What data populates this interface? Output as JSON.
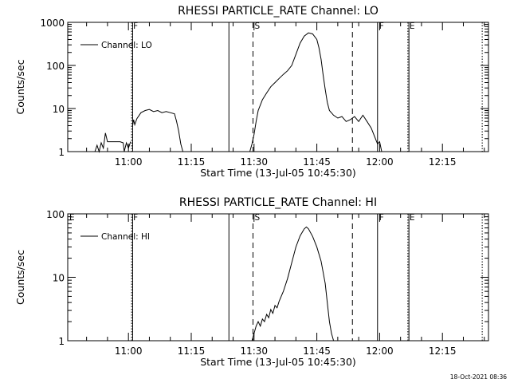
{
  "chart_data": [
    {
      "type": "line",
      "title": "RHESSI PARTICLE_RATE Channel: LO",
      "xlabel": "Start Time (13-Jul-05 10:45:30)",
      "ylabel": "Counts/sec",
      "xlim": [
        "10:45:30",
        "12:26:00"
      ],
      "ylim": [
        1,
        1000
      ],
      "yscale": "log",
      "grid": false,
      "legend": {
        "position": "top-left",
        "entries": [
          "Channel: LO"
        ]
      },
      "x_ticks": [
        "11:00",
        "11:15",
        "11:30",
        "11:45",
        "12:00",
        "12:15"
      ],
      "y_ticks": [
        "1",
        "10",
        "100",
        "1000"
      ],
      "flags": [
        {
          "label": "F",
          "time": "11:00:45",
          "style": "dotted"
        },
        {
          "label": "",
          "time": "11:01:00",
          "style": "solid"
        },
        {
          "label": "",
          "time": "11:24:00",
          "style": "solid"
        },
        {
          "label": "S",
          "time": "11:29:45",
          "style": "dashed"
        },
        {
          "label": "",
          "time": "11:53:30",
          "style": "dashed"
        },
        {
          "label": "F",
          "time": "11:59:30",
          "style": "solid"
        },
        {
          "label": "E",
          "time": "12:06:45",
          "style": "dotted"
        },
        {
          "label": "",
          "time": "12:07:00",
          "style": "solid"
        },
        {
          "label": "",
          "time": "12:24:30",
          "style": "dotted"
        }
      ],
      "series": [
        {
          "name": "Channel: LO",
          "segments": [
            [
              [
                "10:52:00",
                1
              ],
              [
                "10:52:30",
                1.4
              ],
              [
                "10:53:00",
                1
              ],
              [
                "10:53:30",
                1.6
              ],
              [
                "10:54:00",
                1.2
              ],
              [
                "10:54:30",
                2.7
              ],
              [
                "10:55:00",
                1.7
              ],
              [
                "10:56:00",
                1.7
              ],
              [
                "10:57:00",
                1.7
              ],
              [
                "10:58:00",
                1.7
              ],
              [
                "10:58:45",
                1.6
              ],
              [
                "10:59:00",
                1
              ],
              [
                "10:59:30",
                1.6
              ],
              [
                "11:00:00",
                1.2
              ],
              [
                "11:00:30",
                1.7
              ]
            ],
            [
              [
                "11:01:00",
                4.0
              ],
              [
                "11:01:15",
                5.5
              ],
              [
                "11:01:30",
                4.2
              ],
              [
                "11:02:00",
                5.8
              ],
              [
                "11:03:00",
                8.0
              ],
              [
                "11:04:00",
                9.0
              ],
              [
                "11:05:00",
                9.5
              ],
              [
                "11:06:00",
                8.5
              ],
              [
                "11:07:00",
                9.0
              ],
              [
                "11:08:00",
                8.0
              ],
              [
                "11:09:00",
                8.5
              ],
              [
                "11:10:00",
                8.0
              ],
              [
                "11:11:00",
                7.5
              ],
              [
                "11:11:30",
                5.0
              ],
              [
                "11:12:00",
                3.0
              ],
              [
                "11:12:30",
                1.5
              ],
              [
                "11:13:00",
                1.0
              ]
            ],
            [
              [
                "11:29:00",
                1.0
              ],
              [
                "11:29:30",
                1.5
              ],
              [
                "11:30:00",
                2.5
              ],
              [
                "11:30:30",
                5.0
              ],
              [
                "11:31:00",
                9.0
              ],
              [
                "11:32:00",
                16
              ],
              [
                "11:33:00",
                23
              ],
              [
                "11:34:00",
                32
              ],
              [
                "11:35:00",
                40
              ],
              [
                "11:36:00",
                50
              ],
              [
                "11:37:00",
                62
              ],
              [
                "11:38:00",
                75
              ],
              [
                "11:39:00",
                100
              ],
              [
                "11:40:00",
                180
              ],
              [
                "11:41:00",
                330
              ],
              [
                "11:42:00",
                480
              ],
              [
                "11:43:00",
                570
              ],
              [
                "11:44:00",
                540
              ],
              [
                "11:45:00",
                400
              ],
              [
                "11:45:30",
                260
              ],
              [
                "11:46:00",
                140
              ],
              [
                "11:46:30",
                60
              ],
              [
                "11:47:00",
                28
              ],
              [
                "11:47:30",
                14
              ],
              [
                "11:48:00",
                9
              ],
              [
                "11:49:00",
                7
              ],
              [
                "11:50:00",
                6
              ],
              [
                "11:51:00",
                6.5
              ],
              [
                "11:52:00",
                5
              ],
              [
                "11:53:00",
                5.5
              ],
              [
                "11:54:00",
                6.5
              ],
              [
                "11:55:00",
                5
              ],
              [
                "11:56:00",
                7
              ],
              [
                "11:57:00",
                5
              ],
              [
                "11:58:00",
                3.5
              ],
              [
                "11:59:00",
                2
              ],
              [
                "11:59:30",
                1.5
              ],
              [
                "12:00:00",
                1.7
              ],
              [
                "12:00:30",
                1.0
              ]
            ]
          ]
        }
      ]
    },
    {
      "type": "line",
      "title": "RHESSI PARTICLE_RATE Channel: HI",
      "xlabel": "Start Time (13-Jul-05 10:45:30)",
      "ylabel": "Counts/sec",
      "xlim": [
        "10:45:30",
        "12:26:00"
      ],
      "ylim": [
        1,
        100
      ],
      "yscale": "log",
      "grid": false,
      "legend": {
        "position": "top-left",
        "entries": [
          "Channel: HI"
        ]
      },
      "x_ticks": [
        "11:00",
        "11:15",
        "11:30",
        "11:45",
        "12:00",
        "12:15"
      ],
      "y_ticks": [
        "1",
        "10",
        "100"
      ],
      "flags": [
        {
          "label": "E",
          "time": "10:45:30",
          "style": "none"
        },
        {
          "label": "F",
          "time": "11:00:45",
          "style": "dotted"
        },
        {
          "label": "",
          "time": "11:01:00",
          "style": "solid"
        },
        {
          "label": "",
          "time": "11:24:00",
          "style": "solid"
        },
        {
          "label": "S",
          "time": "11:29:45",
          "style": "dashed"
        },
        {
          "label": "",
          "time": "11:53:30",
          "style": "dashed"
        },
        {
          "label": "F",
          "time": "11:59:30",
          "style": "solid"
        },
        {
          "label": "E",
          "time": "12:06:45",
          "style": "dotted"
        },
        {
          "label": "",
          "time": "12:07:00",
          "style": "solid"
        },
        {
          "label": "",
          "time": "12:24:30",
          "style": "dotted"
        }
      ],
      "series": [
        {
          "name": "Channel: HI",
          "segments": [
            [
              [
                "11:29:30",
                1.0
              ],
              [
                "11:30:00",
                1.3
              ],
              [
                "11:30:30",
                1.7
              ],
              [
                "11:31:00",
                2.0
              ],
              [
                "11:31:30",
                1.7
              ],
              [
                "11:32:00",
                2.2
              ],
              [
                "11:32:30",
                2.0
              ],
              [
                "11:33:00",
                2.6
              ],
              [
                "11:33:30",
                2.3
              ],
              [
                "11:34:00",
                3.1
              ],
              [
                "11:34:30",
                2.7
              ],
              [
                "11:35:00",
                3.6
              ],
              [
                "11:35:30",
                3.3
              ],
              [
                "11:36:00",
                4.2
              ],
              [
                "11:37:00",
                6.0
              ],
              [
                "11:38:00",
                9.5
              ],
              [
                "11:39:00",
                17
              ],
              [
                "11:40:00",
                30
              ],
              [
                "11:41:00",
                45
              ],
              [
                "11:42:00",
                58
              ],
              [
                "11:42:30",
                62
              ],
              [
                "11:43:00",
                58
              ],
              [
                "11:44:00",
                44
              ],
              [
                "11:45:00",
                30
              ],
              [
                "11:46:00",
                18
              ],
              [
                "11:47:00",
                8
              ],
              [
                "11:47:30",
                4
              ],
              [
                "11:48:00",
                2
              ],
              [
                "11:48:30",
                1.3
              ],
              [
                "11:49:00",
                1.0
              ]
            ]
          ]
        }
      ]
    }
  ],
  "footer": {
    "timestamp": "18-Oct-2021 08:36"
  }
}
